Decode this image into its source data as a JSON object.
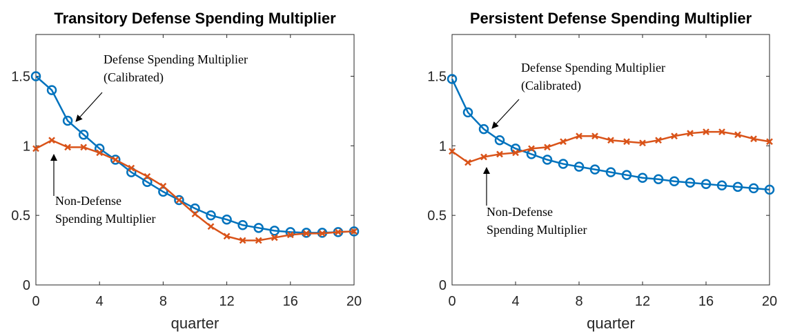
{
  "chart_data": [
    {
      "type": "line",
      "title": "Transitory Defense Spending Multiplier",
      "xlabel": "quarter",
      "x": [
        0,
        1,
        2,
        3,
        4,
        5,
        6,
        7,
        8,
        9,
        10,
        11,
        12,
        13,
        14,
        15,
        16,
        17,
        18,
        19,
        20
      ],
      "xlim": [
        0,
        20
      ],
      "xticks": [
        0,
        4,
        8,
        12,
        16,
        20
      ],
      "ylim": [
        0,
        1.8
      ],
      "yticks": [
        0,
        0.5,
        1,
        1.5
      ],
      "series": [
        {
          "color": "#0072BD",
          "marker": "o",
          "values": [
            1.5,
            1.4,
            1.18,
            1.08,
            0.98,
            0.9,
            0.81,
            0.74,
            0.67,
            0.61,
            0.55,
            0.5,
            0.47,
            0.43,
            0.41,
            0.39,
            0.38,
            0.375,
            0.375,
            0.38,
            0.385
          ]
        },
        {
          "color": "#D95319",
          "marker": "x",
          "values": [
            0.98,
            1.04,
            0.99,
            0.99,
            0.95,
            0.9,
            0.84,
            0.78,
            0.71,
            0.61,
            0.51,
            0.42,
            0.35,
            0.32,
            0.32,
            0.34,
            0.36,
            0.37,
            0.37,
            0.38,
            0.385
          ]
        }
      ],
      "annotations": [
        {
          "lines": [
            "Defense Spending Multiplier",
            "(Calibrated)"
          ]
        },
        {
          "lines": [
            "Non-Defense",
            "Spending Multiplier"
          ]
        }
      ]
    },
    {
      "type": "line",
      "title": "Persistent Defense Spending Multiplier",
      "xlabel": "quarter",
      "x": [
        0,
        1,
        2,
        3,
        4,
        5,
        6,
        7,
        8,
        9,
        10,
        11,
        12,
        13,
        14,
        15,
        16,
        17,
        18,
        19,
        20
      ],
      "xlim": [
        0,
        20
      ],
      "xticks": [
        0,
        4,
        8,
        12,
        16,
        20
      ],
      "ylim": [
        0,
        1.8
      ],
      "yticks": [
        0,
        0.5,
        1,
        1.5
      ],
      "series": [
        {
          "color": "#0072BD",
          "marker": "o",
          "values": [
            1.48,
            1.24,
            1.12,
            1.04,
            0.98,
            0.94,
            0.9,
            0.87,
            0.85,
            0.83,
            0.81,
            0.79,
            0.77,
            0.76,
            0.745,
            0.735,
            0.725,
            0.715,
            0.705,
            0.695,
            0.685
          ]
        },
        {
          "color": "#D95319",
          "marker": "x",
          "values": [
            0.96,
            0.88,
            0.92,
            0.94,
            0.95,
            0.98,
            0.99,
            1.03,
            1.07,
            1.07,
            1.04,
            1.03,
            1.02,
            1.04,
            1.07,
            1.09,
            1.1,
            1.1,
            1.08,
            1.05,
            1.03
          ]
        }
      ],
      "annotations": [
        {
          "lines": [
            "Defense Spending Multiplier",
            "(Calibrated)"
          ]
        },
        {
          "lines": [
            "Non-Defense",
            "Spending Multiplier"
          ]
        }
      ]
    }
  ]
}
